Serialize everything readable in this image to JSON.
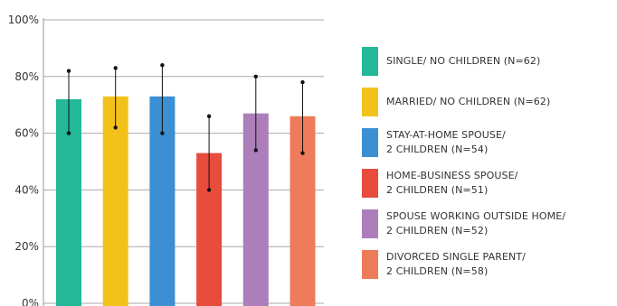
{
  "chart_data": {
    "type": "bar",
    "categories": [
      "SINGLE/ NO CHILDREN (N=62)",
      "MARRIED/ NO CHILDREN (N=62)",
      "STAY-AT-HOME SPOUSE/ 2 CHILDREN (N=54)",
      "HOME-BUSINESS SPOUSE/ 2 CHILDREN (N=51)",
      "SPOUSE WORKING OUTSIDE HOME/ 2 CHILDREN (N=52)",
      "DIVORCED SINGLE PARENT/ 2 CHILDREN (N=58)"
    ],
    "values": [
      72,
      73,
      73,
      53,
      67,
      66
    ],
    "error_low": [
      60,
      62,
      60,
      40,
      54,
      53
    ],
    "error_high": [
      82,
      83,
      84,
      66,
      80,
      78
    ],
    "colors": [
      "#22b898",
      "#f2c21a",
      "#3c8fd2",
      "#e74c3c",
      "#ac7eba",
      "#ee7b5a"
    ],
    "ylim": [
      0,
      100
    ],
    "yticks": [
      "0%",
      "20%",
      "40%",
      "60%",
      "80%",
      "100%"
    ],
    "grid": true,
    "legend_position": "right",
    "title": "",
    "xlabel": "",
    "ylabel": ""
  },
  "legend": [
    {
      "line1": "SINGLE/ NO CHILDREN (N=62)",
      "line2": ""
    },
    {
      "line1": "MARRIED/ NO CHILDREN (N=62)",
      "line2": ""
    },
    {
      "line1": "STAY-AT-HOME SPOUSE/",
      "line2": "2 CHILDREN (N=54)"
    },
    {
      "line1": "HOME-BUSINESS SPOUSE/",
      "line2": "2 CHILDREN (N=51)"
    },
    {
      "line1": "SPOUSE WORKING OUTSIDE HOME/",
      "line2": "2 CHILDREN (N=52)"
    },
    {
      "line1": "DIVORCED SINGLE PARENT/",
      "line2": "2 CHILDREN (N=58)"
    }
  ]
}
